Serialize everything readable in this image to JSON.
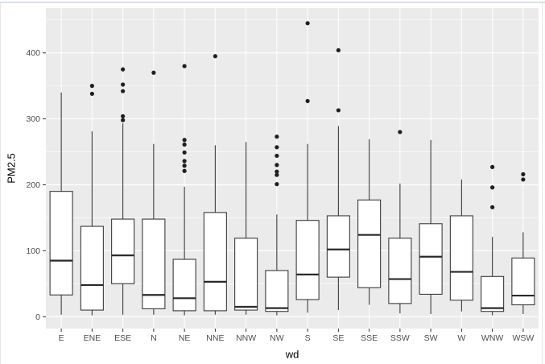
{
  "figure": {
    "panel_background": "#ebebeb",
    "grid_color": "#ffffff",
    "box_fill": "#ffffff",
    "box_stroke": "#3c3c3c",
    "median_stroke": "#2a2a2a",
    "point_color": "#1f1f1f",
    "axis_text_color": "#4d4d4d",
    "tick_mark_color": "#333333",
    "axis_title_color": "#000000",
    "top_border_color": "#d8e1ea",
    "side_border_color": "#e6e6e6"
  },
  "chart_data": {
    "type": "boxplot",
    "title": "",
    "xlabel": "wd",
    "ylabel": "PM2.5",
    "categories": [
      "E",
      "ENE",
      "ESE",
      "N",
      "NE",
      "NNE",
      "NNW",
      "NW",
      "S",
      "SE",
      "SSE",
      "SSW",
      "SW",
      "W",
      "WNW",
      "WSW"
    ],
    "y_ticks": [
      0,
      100,
      200,
      300,
      400
    ],
    "y_minor_ticks": [
      50,
      150,
      250,
      350,
      450
    ],
    "ylim": [
      -18,
      468
    ],
    "grid": true,
    "legend": "none",
    "series": [
      {
        "category": "E",
        "whisker_low": 3,
        "q1": 33,
        "median": 85,
        "q3": 190,
        "whisker_high": 340,
        "outliers": []
      },
      {
        "category": "ENE",
        "whisker_low": 2,
        "q1": 10,
        "median": 48,
        "q3": 137,
        "whisker_high": 281,
        "outliers": [
          350,
          338
        ]
      },
      {
        "category": "ESE",
        "whisker_low": 3,
        "q1": 50,
        "median": 93,
        "q3": 148,
        "whisker_high": 293,
        "outliers": [
          375,
          352,
          342,
          304,
          298
        ]
      },
      {
        "category": "N",
        "whisker_low": 3,
        "q1": 12,
        "median": 33,
        "q3": 148,
        "whisker_high": 262,
        "outliers": [
          370
        ]
      },
      {
        "category": "NE",
        "whisker_low": 2,
        "q1": 9,
        "median": 28,
        "q3": 87,
        "whisker_high": 197,
        "outliers": [
          380,
          268,
          261,
          249,
          236,
          229,
          221
        ]
      },
      {
        "category": "NNE",
        "whisker_low": 3,
        "q1": 9,
        "median": 53,
        "q3": 158,
        "whisker_high": 260,
        "outliers": [
          395
        ]
      },
      {
        "category": "NNW",
        "whisker_low": 3,
        "q1": 10,
        "median": 15,
        "q3": 119,
        "whisker_high": 265,
        "outliers": []
      },
      {
        "category": "NW",
        "whisker_low": 2,
        "q1": 8,
        "median": 13,
        "q3": 70,
        "whisker_high": 155,
        "outliers": [
          273,
          257,
          244,
          230,
          220,
          215,
          201
        ]
      },
      {
        "category": "S",
        "whisker_low": 6,
        "q1": 26,
        "median": 64,
        "q3": 146,
        "whisker_high": 262,
        "outliers": [
          445,
          327
        ]
      },
      {
        "category": "SE",
        "whisker_low": 10,
        "q1": 60,
        "median": 102,
        "q3": 153,
        "whisker_high": 289,
        "outliers": [
          404,
          313
        ]
      },
      {
        "category": "SSE",
        "whisker_low": 18,
        "q1": 44,
        "median": 124,
        "q3": 177,
        "whisker_high": 269,
        "outliers": []
      },
      {
        "category": "SSW",
        "whisker_low": 5,
        "q1": 20,
        "median": 57,
        "q3": 119,
        "whisker_high": 202,
        "outliers": [
          280
        ]
      },
      {
        "category": "SW",
        "whisker_low": 4,
        "q1": 34,
        "median": 91,
        "q3": 141,
        "whisker_high": 268,
        "outliers": []
      },
      {
        "category": "W",
        "whisker_low": 8,
        "q1": 25,
        "median": 68,
        "q3": 153,
        "whisker_high": 208,
        "outliers": []
      },
      {
        "category": "WNW",
        "whisker_low": 2,
        "q1": 8,
        "median": 13,
        "q3": 61,
        "whisker_high": 121,
        "outliers": [
          227,
          196,
          166
        ]
      },
      {
        "category": "WSW",
        "whisker_low": 4,
        "q1": 18,
        "median": 32,
        "q3": 89,
        "whisker_high": 128,
        "outliers": [
          216,
          208
        ]
      }
    ]
  }
}
